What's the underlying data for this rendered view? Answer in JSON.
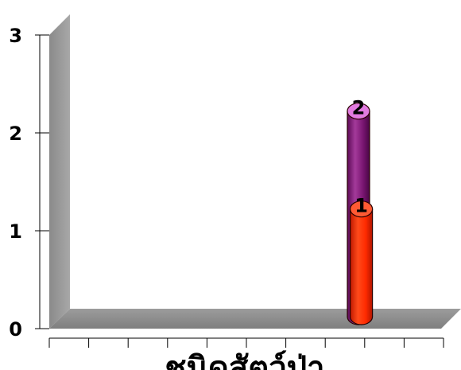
{
  "chart_data": {
    "type": "bar",
    "style": "3d-cylinder",
    "xlabel": "ชนิดสัตว์ป่า",
    "ylabel": "",
    "ylim": [
      0,
      3
    ],
    "yticks": [
      "0",
      "1",
      "2",
      "3"
    ],
    "categories": [
      "",
      "",
      "",
      "",
      "",
      "",
      "",
      "",
      "",
      ""
    ],
    "series": [
      {
        "color": "#9a1f8f",
        "top_color": "#e27be0",
        "values": [
          0,
          0,
          0,
          0,
          0,
          0,
          0,
          2.1,
          0,
          0
        ],
        "labels": [
          "",
          "",
          "",
          "",
          "",
          "",
          "",
          "2",
          "",
          ""
        ]
      },
      {
        "color": "#ff2a00",
        "top_color": "#ff5a33",
        "values": [
          0,
          0,
          0,
          0,
          0,
          0,
          0,
          0,
          1.1,
          0
        ],
        "labels": [
          "",
          "",
          "",
          "",
          "",
          "",
          "",
          "",
          "1",
          ""
        ]
      }
    ],
    "grid": false,
    "legend": "none"
  }
}
